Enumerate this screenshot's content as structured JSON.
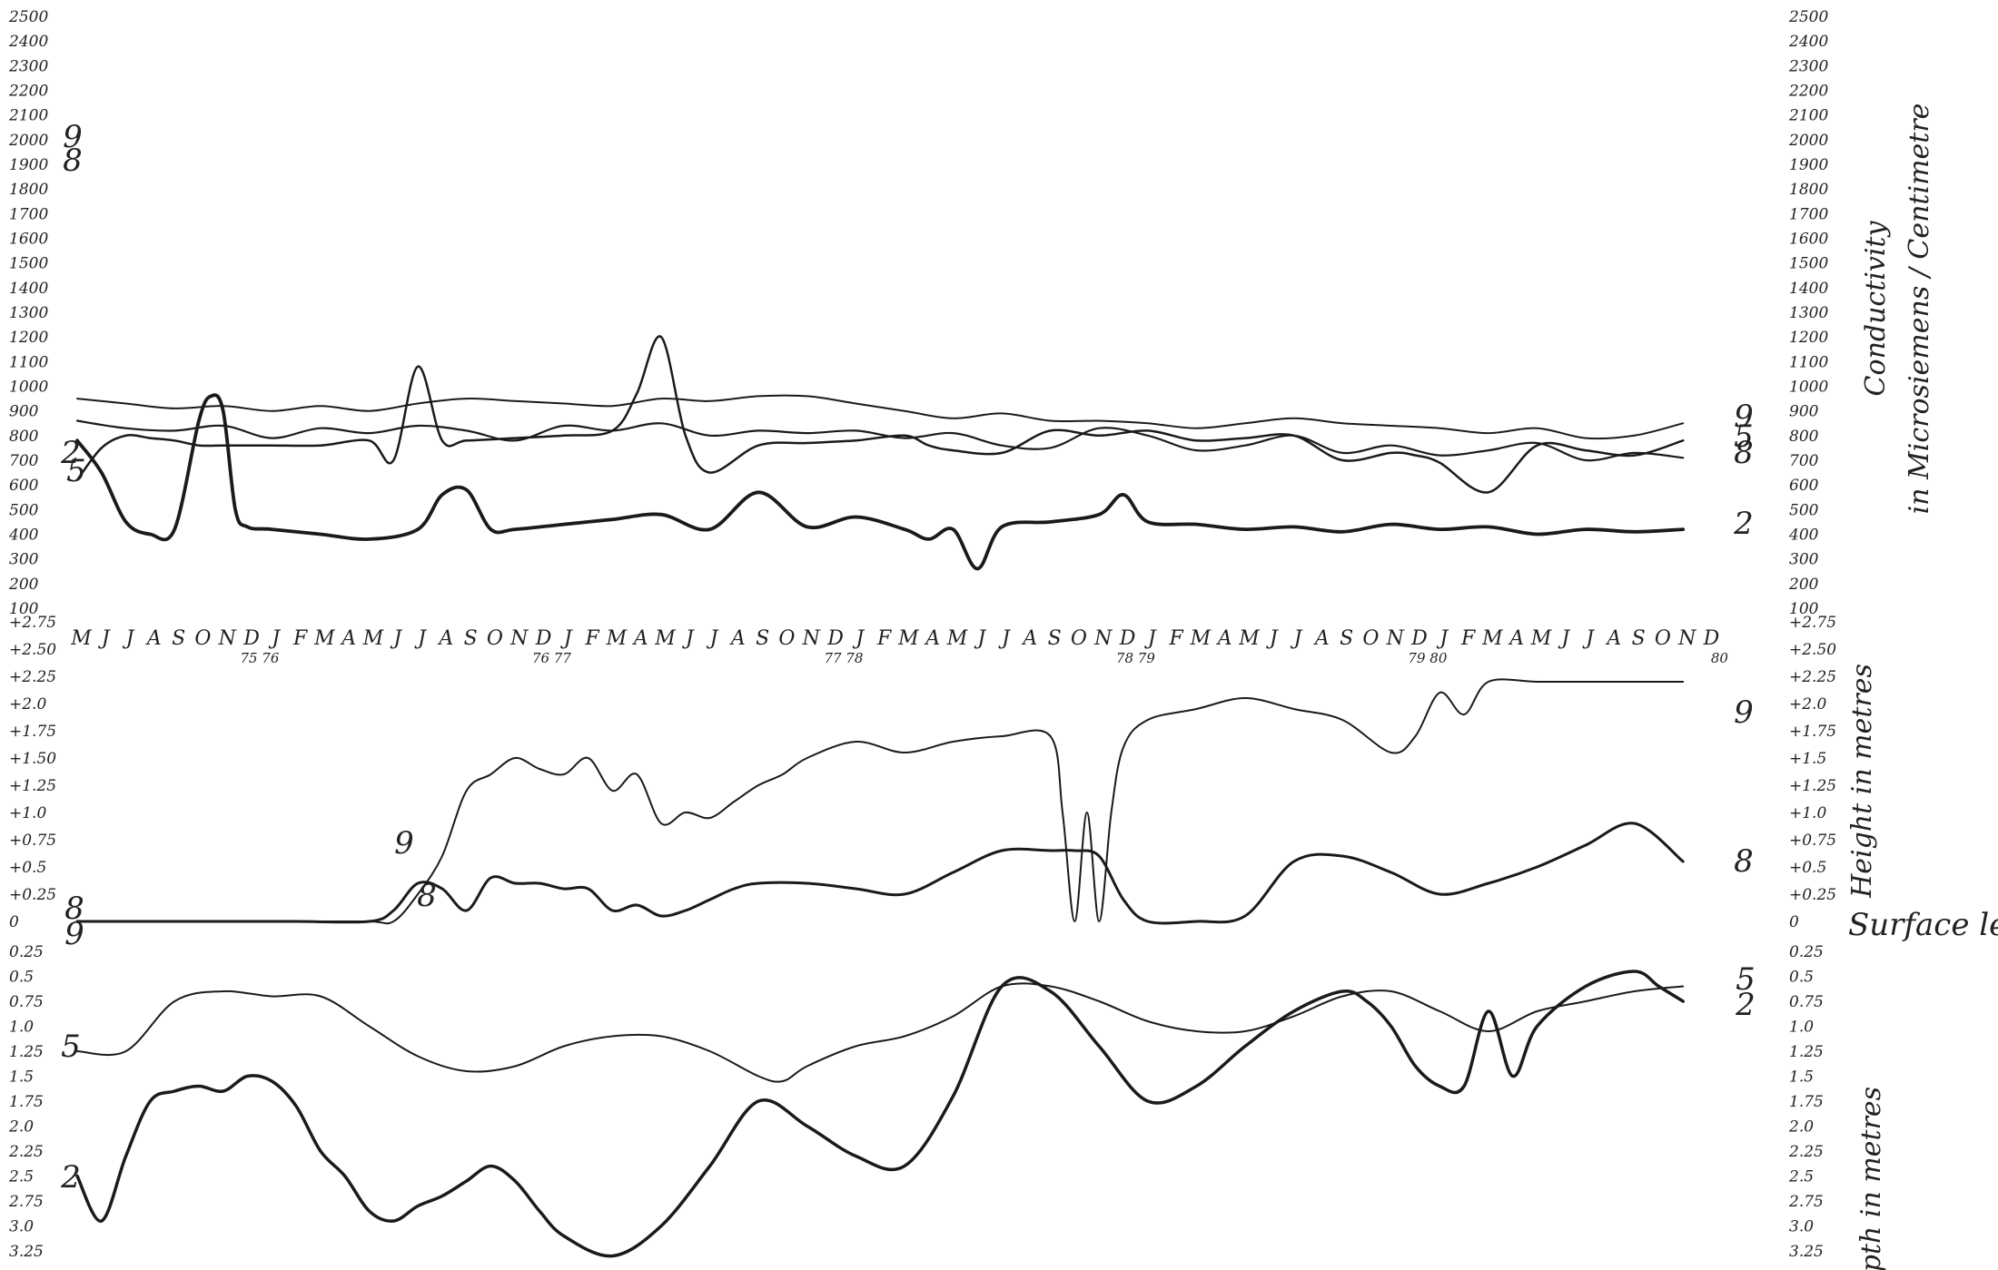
{
  "chart_data": [
    {
      "type": "line",
      "ylabel_right": [
        "Conductivity",
        "in Microsiemens / Centimetre"
      ],
      "ylim": [
        0,
        2500
      ],
      "yticks": [
        "2500",
        "2400",
        "2300",
        "2200",
        "2100",
        "2000",
        "1900",
        "1800",
        "1700",
        "1600",
        "1500",
        "1400",
        "1300",
        "1200",
        "1100",
        "1000",
        "900",
        "800",
        "700",
        "600",
        "500",
        "400",
        "300",
        "200",
        "100"
      ],
      "series": [
        {
          "name": "9",
          "x": [
            0,
            2,
            4,
            6,
            8,
            10,
            12,
            14,
            16,
            18,
            20,
            22,
            24,
            26,
            28,
            30,
            32,
            34,
            36,
            38,
            40,
            42,
            44,
            46,
            48,
            50,
            52,
            54,
            56,
            58,
            60,
            62,
            64,
            66
          ],
          "y": [
            950,
            930,
            910,
            920,
            900,
            920,
            900,
            930,
            950,
            940,
            930,
            920,
            950,
            940,
            960,
            960,
            930,
            900,
            870,
            890,
            860,
            860,
            850,
            830,
            850,
            870,
            850,
            840,
            830,
            810,
            830,
            790,
            800,
            850
          ]
        },
        {
          "name": "8",
          "x": [
            0,
            2,
            4,
            6,
            8,
            10,
            12,
            14,
            16,
            18,
            20,
            22,
            24,
            26,
            28,
            30,
            32,
            34,
            36,
            38,
            40,
            42,
            44,
            46,
            48,
            50,
            52,
            54,
            56,
            58,
            60,
            62,
            64,
            66
          ],
          "y": [
            860,
            830,
            820,
            840,
            790,
            830,
            810,
            840,
            820,
            780,
            840,
            820,
            850,
            800,
            820,
            810,
            820,
            790,
            810,
            760,
            750,
            830,
            800,
            740,
            760,
            800,
            730,
            760,
            720,
            740,
            770,
            700,
            730,
            710
          ]
        },
        {
          "name": "5",
          "x": [
            0,
            1,
            2,
            3,
            4,
            5,
            6,
            8,
            10,
            12,
            13,
            14,
            15,
            16,
            18,
            20,
            22,
            23,
            24,
            25,
            26,
            28,
            30,
            32,
            34,
            35,
            36,
            38,
            40,
            42,
            44,
            46,
            48,
            50,
            52,
            54,
            55,
            56,
            58,
            60,
            62,
            64,
            66
          ],
          "y": [
            620,
            750,
            800,
            790,
            780,
            760,
            760,
            760,
            760,
            780,
            700,
            1080,
            780,
            780,
            790,
            800,
            820,
            970,
            1200,
            800,
            650,
            760,
            770,
            780,
            800,
            760,
            740,
            730,
            820,
            800,
            820,
            780,
            790,
            800,
            700,
            730,
            720,
            690,
            570,
            760,
            740,
            720,
            780
          ]
        },
        {
          "name": "2",
          "x": [
            0,
            1,
            2,
            3,
            4,
            5,
            5.5,
            6,
            6.5,
            7,
            8,
            10,
            12,
            14,
            15,
            16,
            17,
            18,
            20,
            22,
            24,
            26,
            28,
            30,
            32,
            34,
            35,
            36,
            37,
            38,
            40,
            42,
            43,
            44,
            46,
            48,
            50,
            52,
            54,
            56,
            58,
            60,
            62,
            64,
            66
          ],
          "y": [
            780,
            650,
            450,
            400,
            420,
            860,
            960,
            900,
            500,
            430,
            420,
            400,
            380,
            420,
            560,
            580,
            420,
            420,
            440,
            460,
            480,
            420,
            570,
            430,
            470,
            420,
            380,
            420,
            260,
            430,
            450,
            480,
            560,
            450,
            440,
            420,
            430,
            410,
            440,
            420,
            430,
            400,
            420,
            410,
            420
          ]
        }
      ]
    },
    {
      "type": "line",
      "ylabel_right": "Height in metres",
      "surface_label": "Surface level",
      "ylim": [
        0,
        2.75
      ],
      "yticks_left": [
        "+2.75",
        "+2.50",
        "+2.25",
        "+2.0",
        "+1.75",
        "+1.50",
        "+1.25",
        "+1.0",
        "+0.75",
        "+0.5",
        "+0.25",
        "0"
      ],
      "yticks_right": [
        "+2.75",
        "+2.50",
        "+2.25",
        "+2.0",
        "+1.75",
        "+1.5",
        "+1.25",
        "+1.0",
        "+0.75",
        "+0.5",
        "+0.25",
        "0"
      ],
      "series": [
        {
          "name": "9",
          "x": [
            0,
            6,
            9,
            12,
            13,
            14,
            15,
            16,
            17,
            18,
            19,
            20,
            21,
            22,
            23,
            24,
            25,
            26,
            27,
            28,
            29,
            30,
            32,
            34,
            36,
            38,
            40,
            40.5,
            41,
            41.5,
            42,
            42.5,
            43,
            44,
            46,
            48,
            50,
            52,
            54,
            55,
            56,
            57,
            58,
            60,
            62,
            63,
            64,
            66
          ],
          "y": [
            0,
            0,
            0,
            0,
            0,
            0.25,
            0.6,
            1.2,
            1.35,
            1.5,
            1.4,
            1.35,
            1.5,
            1.2,
            1.35,
            0.9,
            1.0,
            0.95,
            1.1,
            1.25,
            1.35,
            1.5,
            1.65,
            1.55,
            1.65,
            1.7,
            1.7,
            1.0,
            0,
            1.0,
            0,
            1.0,
            1.6,
            1.85,
            1.95,
            2.05,
            1.95,
            1.85,
            1.55,
            1.7,
            2.1,
            1.9,
            2.2,
            2.2,
            2.2,
            2.2,
            2.2,
            2.2
          ]
        },
        {
          "name": "8",
          "x": [
            0,
            6,
            9,
            12,
            13,
            14,
            15,
            16,
            17,
            18,
            19,
            20,
            21,
            22,
            23,
            24,
            25,
            26,
            27,
            28,
            30,
            32,
            34,
            36,
            38,
            40,
            41,
            42,
            43,
            44,
            46,
            48,
            50,
            52,
            54,
            56,
            58,
            60,
            62,
            64,
            66
          ],
          "y": [
            0,
            0,
            0,
            0,
            0.1,
            0.35,
            0.3,
            0.1,
            0.4,
            0.35,
            0.35,
            0.3,
            0.3,
            0.1,
            0.15,
            0.05,
            0.1,
            0.2,
            0.3,
            0.35,
            0.35,
            0.3,
            0.25,
            0.45,
            0.65,
            0.65,
            0.65,
            0.6,
            0.2,
            0,
            0,
            0.05,
            0.55,
            0.6,
            0.45,
            0.25,
            0.35,
            0.5,
            0.7,
            0.9,
            0.55
          ]
        }
      ]
    },
    {
      "type": "line",
      "ylabel_right": "Depth in metres",
      "ylim": [
        0.25,
        3.25
      ],
      "yticks_left": [
        "0.25",
        "0.5",
        "0.75",
        "1.0",
        "1.25",
        "1.5",
        "1.75",
        "2.0",
        "2.25",
        "2.5",
        "2.75",
        "3.0",
        "3.25"
      ],
      "yticks_right": [
        "0.25",
        "0.5",
        "0.75",
        "1.0",
        "1.25",
        "1.5",
        "1.75",
        "2.0",
        "2.25",
        "2.5",
        "2.75",
        "3.0",
        "3.25"
      ],
      "series": [
        {
          "name": "5",
          "x": [
            0,
            2,
            4,
            6,
            8,
            10,
            12,
            14,
            16,
            18,
            20,
            22,
            24,
            26,
            28,
            29,
            30,
            32,
            34,
            36,
            38,
            40,
            42,
            44,
            46,
            48,
            50,
            52,
            54,
            56,
            58,
            60,
            62,
            64,
            66
          ],
          "y": [
            1.25,
            1.25,
            0.75,
            0.65,
            0.7,
            0.7,
            1.0,
            1.3,
            1.45,
            1.4,
            1.2,
            1.1,
            1.1,
            1.25,
            1.5,
            1.55,
            1.4,
            1.2,
            1.1,
            0.9,
            0.6,
            0.6,
            0.75,
            0.95,
            1.05,
            1.05,
            0.9,
            0.7,
            0.65,
            0.85,
            1.05,
            0.85,
            0.75,
            0.65,
            0.6
          ]
        },
        {
          "name": "2",
          "x": [
            0,
            1,
            2,
            3,
            4,
            5,
            6,
            7,
            8,
            9,
            10,
            11,
            12,
            13,
            14,
            15,
            16,
            17,
            18,
            19,
            20,
            22,
            24,
            26,
            28,
            30,
            32,
            34,
            36,
            38,
            40,
            42,
            44,
            46,
            48,
            50,
            52,
            53,
            54,
            55,
            56,
            57,
            58,
            59,
            60,
            62,
            64,
            65,
            66
          ],
          "y": [
            2.5,
            2.95,
            2.3,
            1.75,
            1.65,
            1.6,
            1.65,
            1.5,
            1.55,
            1.8,
            2.25,
            2.5,
            2.85,
            2.95,
            2.8,
            2.7,
            2.55,
            2.4,
            2.55,
            2.85,
            3.1,
            3.3,
            3.0,
            2.4,
            1.75,
            2.0,
            2.3,
            2.4,
            1.7,
            0.6,
            0.65,
            1.2,
            1.75,
            1.6,
            1.2,
            0.85,
            0.65,
            0.75,
            1.0,
            1.4,
            1.6,
            1.6,
            0.85,
            1.5,
            1.0,
            0.6,
            0.45,
            0.6,
            0.75
          ]
        }
      ]
    }
  ],
  "x_axis": {
    "months": [
      "M",
      "J",
      "J",
      "A",
      "S",
      "O",
      "N",
      "D",
      "J",
      "F",
      "M",
      "A",
      "M",
      "J",
      "J",
      "A",
      "S",
      "O",
      "N",
      "D",
      "J",
      "F",
      "M",
      "A",
      "M",
      "J",
      "J",
      "A",
      "S",
      "O",
      "N",
      "D",
      "J",
      "F",
      "M",
      "A",
      "M",
      "J",
      "J",
      "A",
      "S",
      "O",
      "N",
      "D",
      "J",
      "F",
      "M",
      "A",
      "M",
      "J",
      "J",
      "A",
      "S",
      "O",
      "N",
      "D",
      "J",
      "F",
      "M",
      "A",
      "M",
      "J",
      "J",
      "A",
      "S",
      "O",
      "N",
      "D"
    ],
    "year_marks": [
      {
        "after_index": 7,
        "label": "75 76"
      },
      {
        "after_index": 19,
        "label": "76 77"
      },
      {
        "after_index": 31,
        "label": "77 78"
      },
      {
        "after_index": 43,
        "label": "78 79"
      },
      {
        "after_index": 55,
        "label": "79 80"
      },
      {
        "after_index": 67,
        "label": "80"
      }
    ]
  }
}
